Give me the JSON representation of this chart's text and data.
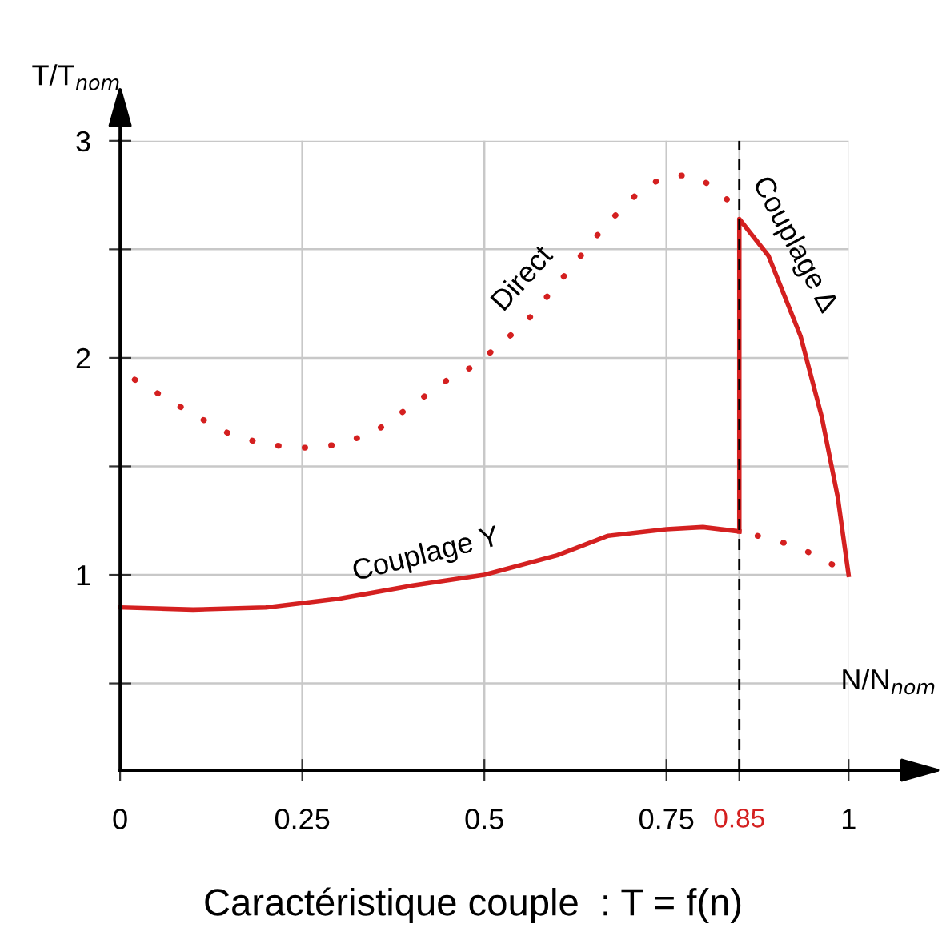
{
  "chart_data": {
    "type": "line",
    "title": "Caractéristique couple  : T = f(n)",
    "xlabel": "N/N$_{nom}$",
    "ylabel": "T/T$_{nom}$",
    "xlim": [
      0,
      1
    ],
    "ylim": [
      0.1,
      3
    ],
    "xticks": [
      0,
      0.25,
      0.5,
      0.75,
      0.85,
      1
    ],
    "yticks": [
      {
        "value": 0.5,
        "label": null
      },
      1,
      {
        "value": 1.5,
        "label": null
      },
      2,
      {
        "value": 2.5,
        "label": null
      },
      3
    ],
    "grid": true,
    "legend": false,
    "series": [
      {
        "name": "Direct",
        "color": "#d42020",
        "line_style": "dotted",
        "x": [
          0.02,
          0.05,
          0.1,
          0.15,
          0.2,
          0.25,
          0.3,
          0.35,
          0.4,
          0.45,
          0.49,
          0.51,
          0.556,
          0.593,
          0.63,
          0.666,
          0.708,
          0.734,
          0.76,
          0.787,
          0.813,
          0.833,
          0.85,
          0.875,
          0.93,
          0.982,
          1.0
        ],
        "values": [
          1.9,
          1.84,
          1.74,
          1.65,
          1.6,
          1.585,
          1.6,
          1.66,
          1.78,
          1.9,
          1.97,
          2.03,
          2.16,
          2.31,
          2.46,
          2.61,
          2.75,
          2.81,
          2.84,
          2.84,
          2.79,
          2.73,
          null,
          1.18,
          1.13,
          1.04,
          1.0
        ]
      },
      {
        "name": "Couplage Y",
        "color": "#d42020",
        "line_style": "solid",
        "x": [
          0,
          0.1,
          0.2,
          0.25,
          0.3,
          0.4,
          0.5,
          0.6,
          0.67,
          0.75,
          0.8,
          0.85
        ],
        "values": [
          0.85,
          0.84,
          0.85,
          0.87,
          0.89,
          0.95,
          1.0,
          1.09,
          1.18,
          1.21,
          1.22,
          1.2
        ]
      },
      {
        "name": "Couplage Δ",
        "color": "#d42020",
        "line_style": "solid",
        "x": [
          0.85,
          0.85,
          0.89,
          0.934,
          0.963,
          0.985,
          1.0
        ],
        "values": [
          1.2,
          2.64,
          2.47,
          2.1,
          1.73,
          1.36,
          1.0
        ]
      }
    ],
    "ref_lines": [
      {
        "axis": "x",
        "value": 0.85,
        "color": "#000000",
        "line_style": "dashed"
      }
    ]
  }
}
